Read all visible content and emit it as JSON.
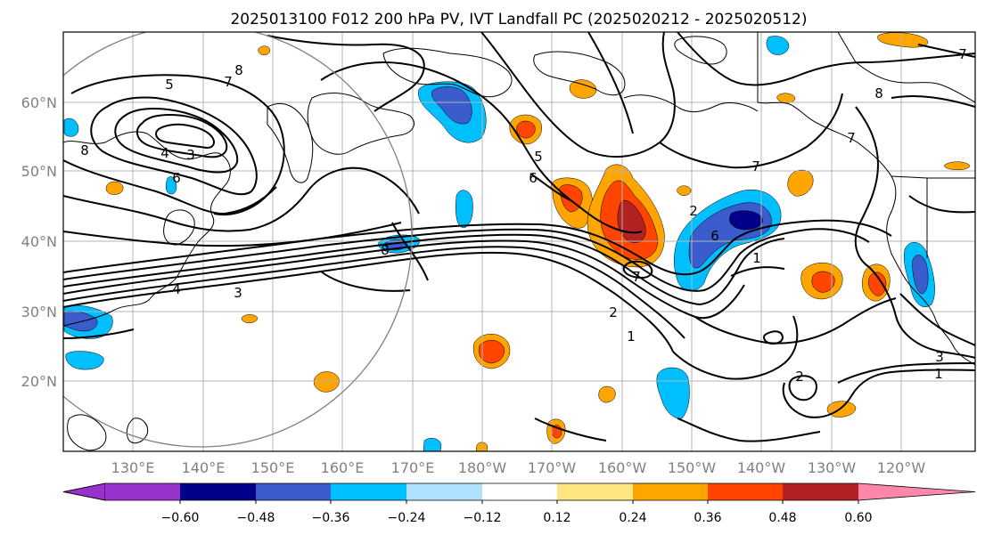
{
  "title": "2025013100 F012 200 hPa PV, IVT Landfall PC (2025020212 - 2025020512)",
  "lat_labels": [
    "60°N",
    "50°N",
    "40°N",
    "30°N",
    "20°N"
  ],
  "lon_labels": [
    "130°E",
    "140°E",
    "150°E",
    "160°E",
    "170°E",
    "180°W",
    "170°W",
    "160°W",
    "150°W",
    "140°W",
    "130°W",
    "120°W"
  ],
  "colorbar": {
    "colors": [
      "#9932cc",
      "#00008b",
      "#3a5ccc",
      "#00bfff",
      "#b0e2ff",
      "#ffffff",
      "#ffe680",
      "#ffa500",
      "#ff4500",
      "#b22222",
      "#ff88aa"
    ],
    "tick_labels": [
      "−0.60",
      "−0.48",
      "−0.36",
      "−0.24",
      "−0.12",
      "0.12",
      "0.24",
      "0.36",
      "0.48",
      "0.60"
    ],
    "levels": [
      -0.6,
      -0.48,
      -0.36,
      -0.24,
      -0.12,
      0.12,
      0.24,
      0.36,
      0.48,
      0.6
    ]
  },
  "contour_labels": [
    "5",
    "7",
    "8",
    "3",
    "4",
    "6",
    "8",
    "8",
    "5",
    "6",
    "4",
    "3",
    "2",
    "1",
    "2",
    "6",
    "1",
    "7",
    "7",
    "7",
    "8",
    "7",
    "3",
    "1",
    "2"
  ]
}
